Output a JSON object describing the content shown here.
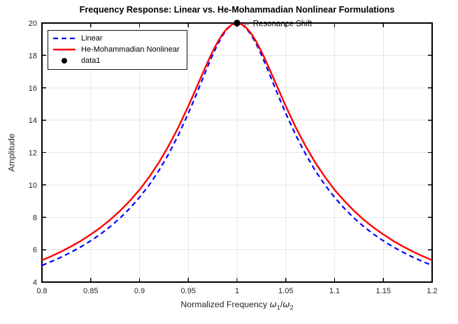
{
  "figure": {
    "background": "#FFFFFF"
  },
  "chart_data": {
    "type": "line",
    "title": "Frequency Response: Linear vs. He-Mohammadian Nonlinear Formulations",
    "xlabel": {
      "prefix": "Normalized Frequency",
      "omega": "ω",
      "sub_1": "1",
      "slash": "/",
      "sub_2": "2"
    },
    "ylabel": "Amplitude",
    "xlim": [
      0.8,
      1.2
    ],
    "ylim": [
      4,
      20
    ],
    "xticks": {
      "values": [
        0.8,
        0.85,
        0.9,
        0.95,
        1,
        1.05,
        1.1,
        1.15,
        1.2
      ],
      "labels": [
        "0.8",
        "0.85",
        "0.9",
        "0.95",
        "1",
        "1.05",
        "1.1",
        "1.15",
        "1.2"
      ]
    },
    "yticks": {
      "values": [
        4,
        6,
        8,
        10,
        12,
        14,
        16,
        18,
        20
      ],
      "labels": [
        "4",
        "6",
        "8",
        "10",
        "12",
        "14",
        "16",
        "18",
        "20"
      ]
    },
    "grid": true,
    "grid_color": "#E6E6E6",
    "axis_color": "#000000",
    "tick_label_color": "#262626",
    "x": [
      0.8,
      0.81,
      0.82,
      0.83,
      0.84,
      0.85,
      0.86,
      0.87,
      0.88,
      0.89,
      0.9,
      0.91,
      0.92,
      0.93,
      0.94,
      0.95,
      0.955,
      0.96,
      0.965,
      0.97,
      0.975,
      0.98,
      0.985,
      0.99,
      0.995,
      1,
      1.005,
      1.01,
      1.015,
      1.02,
      1.025,
      1.03,
      1.035,
      1.04,
      1.045,
      1.05,
      1.06,
      1.07,
      1.08,
      1.09,
      1.1,
      1.11,
      1.12,
      1.13,
      1.14,
      1.15,
      1.16,
      1.17,
      1.18,
      1.19,
      1.2
    ],
    "series": [
      {
        "name": "Linear",
        "color": "#0000FF",
        "line_style": "dashed",
        "values": [
          5.03,
          5.28,
          5.55,
          5.85,
          6.18,
          6.55,
          6.96,
          7.43,
          7.95,
          8.55,
          9.23,
          10.01,
          10.9,
          11.93,
          13.1,
          14.42,
          15.12,
          15.85,
          16.59,
          17.32,
          18.03,
          18.67,
          19.22,
          19.64,
          19.91,
          20,
          19.91,
          19.64,
          19.22,
          18.67,
          18.03,
          17.32,
          16.59,
          15.85,
          15.12,
          14.42,
          13.1,
          11.93,
          10.9,
          10.01,
          9.23,
          8.55,
          7.95,
          7.43,
          6.96,
          6.55,
          6.18,
          5.85,
          5.55,
          5.28,
          5.03
        ]
      },
      {
        "name": "He-Mohammadian Nonlinear",
        "color": "#FF0000",
        "line_style": "solid",
        "values": [
          5.35,
          5.61,
          5.89,
          6.21,
          6.55,
          6.94,
          7.37,
          7.85,
          8.4,
          9.01,
          9.7,
          10.5,
          11.4,
          12.43,
          13.58,
          14.86,
          15.54,
          16.23,
          16.92,
          17.59,
          18.24,
          18.82,
          19.31,
          19.68,
          19.92,
          20,
          19.92,
          19.68,
          19.31,
          18.82,
          18.24,
          17.59,
          16.92,
          16.23,
          15.54,
          14.86,
          13.58,
          12.43,
          11.4,
          10.5,
          9.7,
          9.01,
          8.4,
          7.85,
          7.37,
          6.94,
          6.55,
          6.21,
          5.89,
          5.61,
          5.35
        ]
      }
    ],
    "marker_points": [
      {
        "name": "data1",
        "x": 1,
        "y": 20,
        "color": "#000000"
      }
    ],
    "annotation": {
      "arrow": "←",
      "text": "Resonance Shift",
      "x": 1,
      "y": 20,
      "color": "#000000"
    },
    "legend": {
      "position": "northwest",
      "items": [
        {
          "label": "Linear",
          "color": "#0000FF",
          "style": "dashed-line"
        },
        {
          "label": "He-Mohammadian Nonlinear",
          "color": "#FF0000",
          "style": "solid-line"
        },
        {
          "label": "data1",
          "color": "#000000",
          "style": "dot-marker"
        }
      ]
    }
  }
}
